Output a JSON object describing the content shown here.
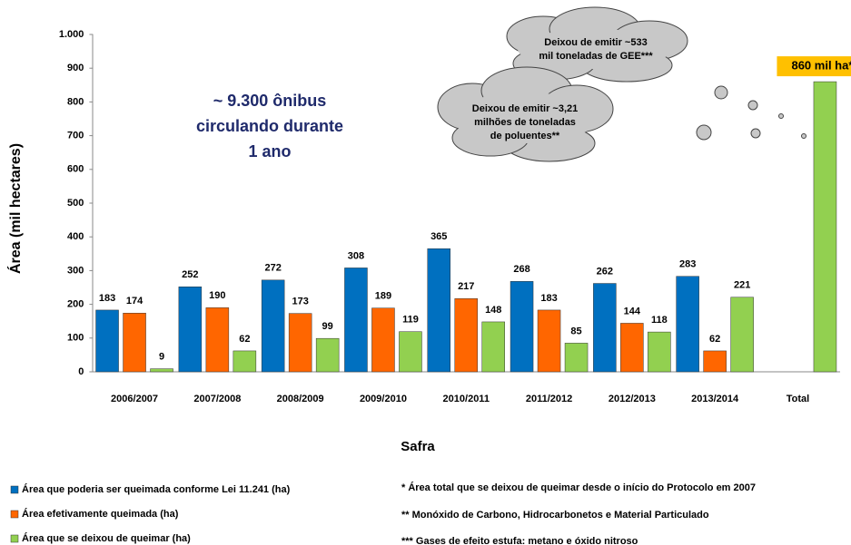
{
  "chart_data": {
    "type": "bar",
    "categories": [
      "2006/2007",
      "2007/2008",
      "2008/2009",
      "2009/2010",
      "2010/2011",
      "2011/2012",
      "2012/2013",
      "2013/2014",
      "Total"
    ],
    "series": [
      {
        "name": "Área que poderia ser queimada conforme  Lei 11.241 (ha)",
        "color": "#0070c0",
        "values": [
          183,
          252,
          272,
          308,
          365,
          268,
          262,
          283,
          null
        ]
      },
      {
        "name": "Área efetivamente  queimada (ha)",
        "color": "#ff6600",
        "values": [
          174,
          190,
          173,
          189,
          217,
          183,
          144,
          62,
          null
        ]
      },
      {
        "name": "Área que se deixou de queimar (ha)",
        "color": "#92d050",
        "values": [
          9,
          62,
          99,
          119,
          148,
          85,
          118,
          221,
          860
        ],
        "value_labels": [
          "9",
          "62",
          "99",
          "119",
          "148",
          "85",
          "118",
          "221",
          "860 mil ha*"
        ]
      }
    ],
    "ylim": [
      0,
      1000
    ],
    "yticks": [
      0,
      100,
      200,
      300,
      400,
      500,
      600,
      700,
      800,
      {
        "value": 1000,
        "label": "1.000"
      },
      900
    ],
    "y_label": "Área (mil hectares)",
    "x_label": "Safra",
    "annotation": [
      "~ 9.300 ônibus",
      "circulando durante",
      "1 ano"
    ],
    "clouds": [
      [
        "Deixou de emitir  ~533",
        "mil toneladas de GEE***"
      ],
      [
        "Deixou de emitir ~3,21",
        "milhões de toneladas",
        "de poluentes**"
      ]
    ],
    "footnotes": [
      "* Área total que se deixou de queimar desde o início do Protocolo em 2007",
      "** Monóxido de Carbono, Hidrocarbonetos  e Material Particulado",
      "***  Gases de efeito estufa:  metano e óxido nitroso"
    ]
  }
}
